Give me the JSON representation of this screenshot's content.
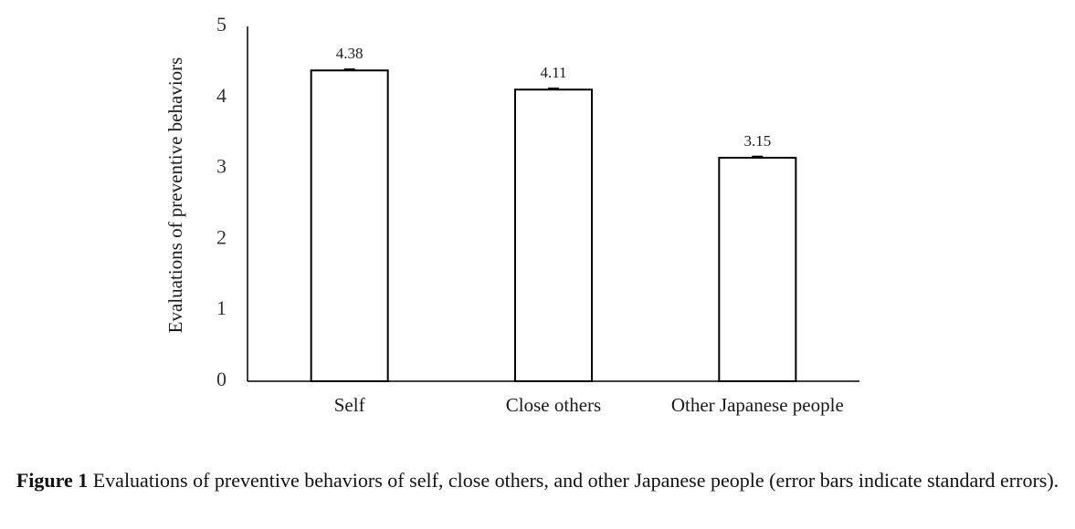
{
  "chart_data": {
    "type": "bar",
    "categories": [
      "Self",
      "Close others",
      "Other Japanese people"
    ],
    "values": [
      4.38,
      4.11,
      3.15
    ],
    "data_labels": [
      "4.38",
      "4.11",
      "3.15"
    ],
    "error_bars": "standard errors",
    "ylabel": "Evaluations of preventive behaviors",
    "xlabel": "",
    "ylim": [
      0,
      5
    ],
    "yticks": [
      "0",
      "1",
      "2",
      "3",
      "4",
      "5"
    ],
    "grid": false,
    "legend": "none",
    "bar_fill": "#ffffff",
    "bar_stroke": "#000000"
  },
  "caption": {
    "label": "Figure 1",
    "text": " Evaluations of preventive behaviors of self, close others, and other Japanese people (error bars indicate standard errors)."
  }
}
